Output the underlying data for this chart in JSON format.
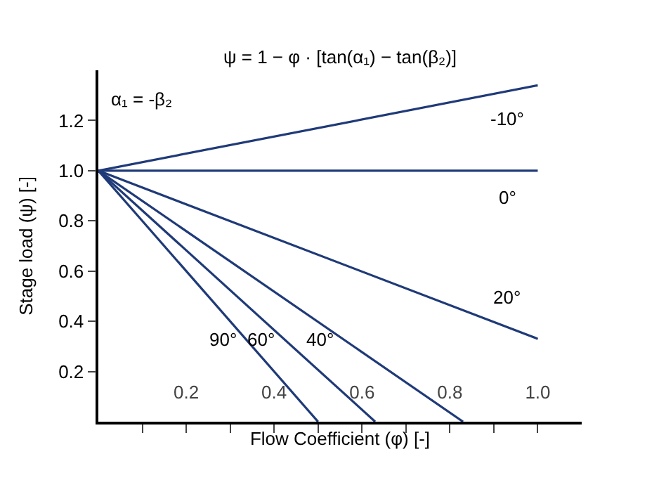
{
  "chart_data": {
    "type": "line",
    "xlabel": "Flow Coefficient (φ) [-]",
    "ylabel": "Stage load (ψ) [-]",
    "annotations": [
      "ψ = 1 − φ · [tan(α₁) − tan(β₂)]",
      "α₁ = -β₂"
    ],
    "series": [
      {
        "name": "-10°",
        "color": "#1f3a78",
        "x": [
          0,
          1.0
        ],
        "values": [
          1.0,
          1.34
        ]
      },
      {
        "name": "0°",
        "color": "#1f3a78",
        "x": [
          0,
          1.0
        ],
        "values": [
          1.0,
          1.0
        ]
      },
      {
        "name": "20°",
        "color": "#1f3a78",
        "x": [
          0,
          1.0
        ],
        "values": [
          1.0,
          0.33
        ]
      },
      {
        "name": "40°",
        "color": "#1f3a78",
        "x": [
          0,
          0.83
        ],
        "values": [
          1.0,
          0
        ]
      },
      {
        "name": "60°",
        "color": "#1f3a78",
        "x": [
          0,
          0.63
        ],
        "values": [
          1.0,
          0
        ]
      },
      {
        "name": "90°",
        "color": "#1f3a78",
        "x": [
          0,
          0.5
        ],
        "values": [
          1.0,
          0
        ]
      }
    ],
    "xlim": [
      0,
      1.1
    ],
    "ylim": [
      0,
      1.4
    ],
    "xticks": [
      {
        "value": 0.1,
        "label": null
      },
      0.2,
      {
        "value": 0.3,
        "label": null
      },
      0.4,
      {
        "value": 0.5,
        "label": null
      },
      0.6,
      {
        "value": 0.7,
        "label": null
      },
      0.8,
      {
        "value": 0.9,
        "label": null
      },
      {
        "value": 1.0,
        "label": "1.0"
      }
    ],
    "yticks": [
      0.2,
      0.4,
      0.6,
      0.8,
      {
        "value": 1.0,
        "label": "1.0"
      },
      1.2
    ],
    "legend": false,
    "marker": "none",
    "line_style": "solid"
  }
}
